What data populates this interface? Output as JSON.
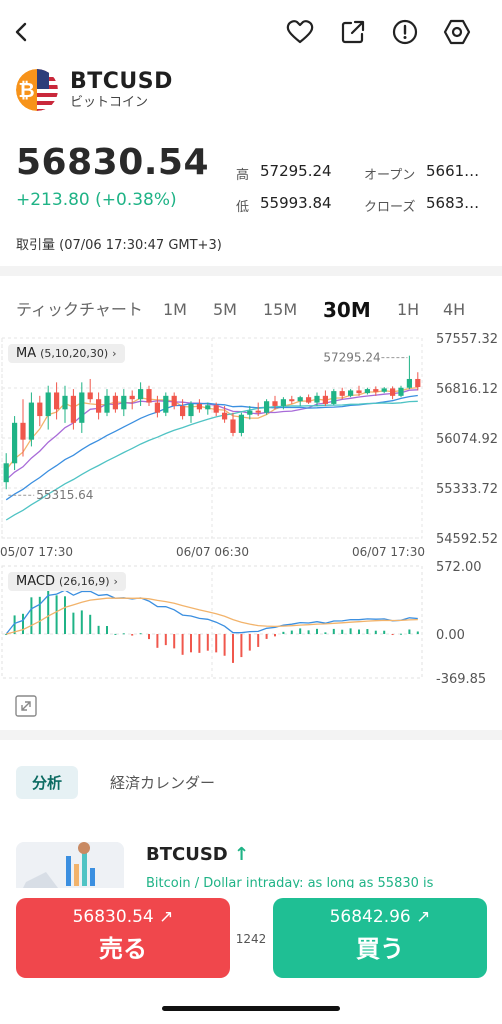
{
  "header": {
    "symbol": "BTCUSD",
    "symbol_sub": "ビットコイン",
    "icons": [
      "back-icon",
      "heart-icon",
      "share-icon",
      "alert-icon",
      "settings-icon"
    ]
  },
  "quote": {
    "price": "56830.54",
    "change": "+213.80 (+0.38%)",
    "high_label": "高",
    "high": "57295.24",
    "low_label": "低",
    "low": "55993.84",
    "open_label": "オープン",
    "open": "5661…",
    "close_label": "クローズ",
    "close": "5683…",
    "volume": "取引量 (07/06 17:30:47 GMT+3)"
  },
  "timeframes": {
    "tick": "ティックチャート",
    "m1": "1M",
    "m5": "5M",
    "m15": "15M",
    "m30": "30M",
    "h1": "1H",
    "h4": "4H",
    "active": "30M"
  },
  "chart_data": {
    "type": "candlestick",
    "indicator_main": {
      "name": "MA",
      "params": "(5,10,20,30)"
    },
    "indicator_sub": {
      "name": "MACD",
      "params": "(26,16,9)"
    },
    "y_ticks": [
      "57557.32",
      "56816.12",
      "56074.92",
      "55333.72",
      "54592.52"
    ],
    "ylim": [
      54592.52,
      57557.32
    ],
    "x_ticks": [
      "05/07 17:30",
      "06/07 06:30",
      "06/07 17:30"
    ],
    "max_label": "57295.24",
    "min_label": "55315.64",
    "macd_ticks": [
      "572.00",
      "0.00",
      "-369.85"
    ],
    "macd_ylim": [
      -369.85,
      572.0
    ],
    "candles": [
      [
        55420,
        55850,
        55315.64,
        55700
      ],
      [
        55700,
        56400,
        55600,
        56300
      ],
      [
        56300,
        56650,
        55800,
        56050
      ],
      [
        56050,
        56750,
        55950,
        56600
      ],
      [
        56600,
        56700,
        56250,
        56400
      ],
      [
        56400,
        56850,
        56200,
        56750
      ],
      [
        56750,
        56900,
        56350,
        56500
      ],
      [
        56500,
        56850,
        56300,
        56700
      ],
      [
        56700,
        56800,
        56200,
        56300
      ],
      [
        56300,
        56900,
        56150,
        56750
      ],
      [
        56750,
        56950,
        56600,
        56650
      ],
      [
        56650,
        56750,
        56350,
        56450
      ],
      [
        56450,
        56800,
        56400,
        56700
      ],
      [
        56700,
        56750,
        56450,
        56500
      ],
      [
        56500,
        56800,
        56400,
        56700
      ],
      [
        56700,
        56780,
        56500,
        56650
      ],
      [
        56650,
        56900,
        56550,
        56800
      ],
      [
        56800,
        56850,
        56550,
        56600
      ],
      [
        56600,
        56700,
        56380,
        56450
      ],
      [
        56450,
        56750,
        56400,
        56700
      ],
      [
        56700,
        56750,
        56500,
        56550
      ],
      [
        56550,
        56650,
        56350,
        56400
      ],
      [
        56400,
        56620,
        56300,
        56580
      ],
      [
        56580,
        56650,
        56450,
        56500
      ],
      [
        56500,
        56600,
        56420,
        56560
      ],
      [
        56560,
        56600,
        56400,
        56450
      ],
      [
        56450,
        56550,
        56300,
        56350
      ],
      [
        56350,
        56450,
        56100,
        56150
      ],
      [
        56150,
        56450,
        56100,
        56420
      ],
      [
        56420,
        56550,
        56350,
        56480
      ],
      [
        56480,
        56600,
        56400,
        56450
      ],
      [
        56450,
        56650,
        56420,
        56620
      ],
      [
        56620,
        56700,
        56500,
        56550
      ],
      [
        56550,
        56680,
        56500,
        56650
      ],
      [
        56650,
        56700,
        56580,
        56620
      ],
      [
        56620,
        56700,
        56550,
        56680
      ],
      [
        56680,
        56720,
        56580,
        56600
      ],
      [
        56600,
        56750,
        56550,
        56700
      ],
      [
        56700,
        56780,
        56550,
        56580
      ],
      [
        56580,
        56800,
        56560,
        56770
      ],
      [
        56770,
        56820,
        56650,
        56700
      ],
      [
        56700,
        56800,
        56680,
        56780
      ],
      [
        56780,
        56850,
        56700,
        56740
      ],
      [
        56740,
        56820,
        56720,
        56800
      ],
      [
        56800,
        56840,
        56700,
        56760
      ],
      [
        56760,
        56830,
        56740,
        56810
      ],
      [
        56810,
        56840,
        56650,
        56700
      ],
      [
        56700,
        56850,
        56680,
        56820
      ],
      [
        56820,
        57295.24,
        56800,
        56950
      ],
      [
        56950,
        57050,
        56780,
        56830.54
      ]
    ],
    "colors": {
      "up": "#1fb386",
      "down": "#f0574c",
      "ma5": "#f2b36b",
      "ma10": "#a86bd8",
      "ma20": "#3b8fe0",
      "ma30": "#4fc3c4",
      "macd_line": "#3b8fe0",
      "signal_line": "#f2b36b"
    }
  },
  "analysis": {
    "tab_active": "分析",
    "tab_inactive": "経済カレンダー",
    "news_title": "BTCUSD",
    "news_sub": "Bitcoin / Dollar intraday: as long as 55830 is"
  },
  "trade": {
    "sell_price": "56830.54",
    "sell_label": "売る",
    "buy_price": "56842.96",
    "buy_label": "買う",
    "spread": "1242"
  }
}
